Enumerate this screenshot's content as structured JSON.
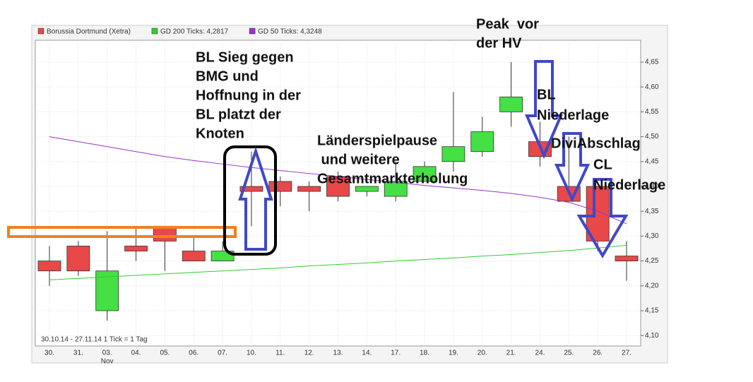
{
  "chart_data": {
    "type": "candlestick",
    "categories": [
      "30.",
      "31.",
      "03.",
      "04.",
      "05.",
      "06.",
      "07.",
      "10.",
      "11.",
      "12.",
      "13.",
      "14.",
      "17.",
      "18.",
      "19.",
      "20.",
      "21.",
      "24.",
      "25.",
      "26.",
      "27."
    ],
    "month_label": "Nov",
    "range_note": "30.10.14 - 27.11.14  1 Tick = 1 Tag",
    "series": [
      {
        "name": "Borussia Dortmund (Xetra)",
        "color": "#e84848",
        "up_color": "#44e044",
        "open": [
          4.25,
          4.28,
          4.15,
          4.28,
          4.32,
          4.27,
          4.25,
          4.4,
          4.41,
          4.4,
          4.42,
          4.39,
          4.38,
          4.41,
          4.45,
          4.47,
          4.55,
          4.49,
          4.4,
          4.4,
          4.26
        ],
        "high": [
          4.28,
          4.29,
          4.31,
          4.32,
          4.32,
          4.3,
          4.29,
          4.47,
          4.42,
          4.41,
          4.43,
          4.4,
          4.45,
          4.45,
          4.59,
          4.54,
          4.65,
          4.53,
          4.5,
          4.4,
          4.29
        ],
        "low": [
          4.2,
          4.22,
          4.13,
          4.25,
          4.23,
          4.25,
          4.25,
          4.32,
          4.36,
          4.35,
          4.37,
          4.38,
          4.37,
          4.41,
          4.43,
          4.46,
          4.52,
          4.44,
          4.37,
          4.27,
          4.21
        ],
        "close": [
          4.23,
          4.23,
          4.23,
          4.27,
          4.29,
          4.25,
          4.27,
          4.39,
          4.39,
          4.39,
          4.38,
          4.4,
          4.41,
          4.44,
          4.48,
          4.51,
          4.58,
          4.46,
          4.37,
          4.29,
          4.25
        ]
      },
      {
        "name": "GD 200 Ticks: 4,2817",
        "color": "#33cc33",
        "values": [
          4.212,
          4.215,
          4.218,
          4.221,
          4.224,
          4.227,
          4.23,
          4.233,
          4.236,
          4.24,
          4.243,
          4.246,
          4.25,
          4.253,
          4.256,
          4.26,
          4.263,
          4.267,
          4.271,
          4.276,
          4.2817
        ]
      },
      {
        "name": "GD 50 Ticks: 4,3248",
        "color": "#9933cc",
        "values": [
          4.5,
          4.49,
          4.48,
          4.47,
          4.46,
          4.452,
          4.445,
          4.438,
          4.432,
          4.426,
          4.42,
          4.414,
          4.408,
          4.402,
          4.397,
          4.392,
          4.386,
          4.378,
          4.368,
          4.35,
          4.3248
        ]
      }
    ],
    "ylim": [
      4.079,
      4.694
    ],
    "yticks": [
      {
        "value": 4.1,
        "label": "4,10"
      },
      {
        "value": 4.15,
        "label": "4,15"
      },
      {
        "value": 4.2,
        "label": "4,20"
      },
      {
        "value": 4.25,
        "label": "4,25"
      },
      {
        "value": 4.3,
        "label": "4,30"
      },
      {
        "value": 4.35,
        "label": "4,35"
      },
      {
        "value": 4.4,
        "label": "4,40"
      },
      {
        "value": 4.45,
        "label": "4,45"
      },
      {
        "value": 4.5,
        "label": "4,50"
      },
      {
        "value": 4.55,
        "label": "4,55"
      },
      {
        "value": 4.6,
        "label": "4,60"
      },
      {
        "value": 4.65,
        "label": "4,65"
      }
    ],
    "grid": true,
    "annotations": [
      {
        "lines": [
          "BL Sieg gegen",
          "BMG und",
          "Hoffnung in der",
          "BL platzt der",
          "Knoten"
        ]
      },
      {
        "lines": [
          "Länderspielpause",
          " und weitere",
          "Gesamtmarkterholung"
        ]
      },
      {
        "lines": [
          "Peak  vor",
          "der HV"
        ]
      },
      {
        "lines": [
          "BL",
          "Niederlage"
        ]
      },
      {
        "lines": [
          "DiviAbschlag"
        ]
      },
      {
        "lines": [
          "CL",
          "Niederlage"
        ]
      }
    ]
  }
}
